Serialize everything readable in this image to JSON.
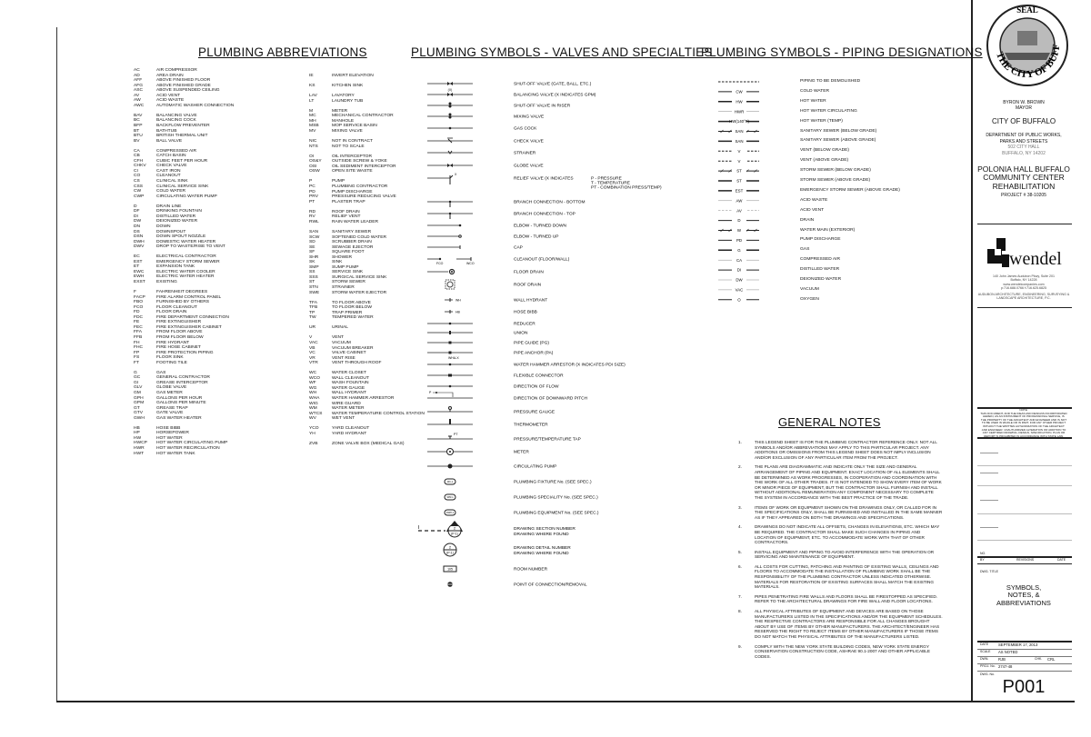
{
  "headings": {
    "abbreviations": "PLUMBING ABBREVIATIONS",
    "valves": "PLUMBING SYMBOLS - VALVES AND SPECIALTIES",
    "piping": "PLUMBING SYMBOLS - PIPING DESIGNATIONS",
    "notes": "GENERAL NOTES"
  },
  "abbreviations_col1": [
    [
      [
        "AC",
        "AIR COMPRESSOR"
      ],
      [
        "AD",
        "AREA DRAIN"
      ],
      [
        "AFF",
        "ABOVE FINISHED FLOOR"
      ],
      [
        "AFG",
        "ABOVE FINISHED GRADE"
      ],
      [
        "ASC",
        "ABOVE SUSPENDED CEILING"
      ],
      [
        "AV",
        "ACID VENT"
      ],
      [
        "AW",
        "ACID WASTE"
      ],
      [
        "AWC",
        "AUTOMATIC WASHER CONNECTION"
      ]
    ],
    [
      [
        "BAV",
        "BALANCING VALVE"
      ],
      [
        "BC",
        "BALANCING COCK"
      ],
      [
        "BFP",
        "BACKFLOW PREVENTER"
      ],
      [
        "BT",
        "BATHTUB"
      ],
      [
        "BTU",
        "BRITISH THERMAL UNIT"
      ],
      [
        "BV",
        "BALL VALVE"
      ]
    ],
    [
      [
        "CA",
        "COMPRESSED AIR"
      ],
      [
        "CB",
        "CATCH BASIN"
      ],
      [
        "CFH",
        "CUBIC FEET PER HOUR"
      ],
      [
        "CHKV",
        "CHECK VALVE"
      ],
      [
        "CI",
        "CAST IRON"
      ],
      [
        "CO",
        "CLEANOUT"
      ],
      [
        "CS",
        "CLINICAL SINK"
      ],
      [
        "CSS",
        "CLINICAL SERVICE SINK"
      ],
      [
        "CW",
        "COLD WATER"
      ],
      [
        "CWP",
        "CIRCULATING WATER PUMP"
      ]
    ],
    [
      [
        "D",
        "DRAIN LINE"
      ],
      [
        "DF",
        "DRINKING FOUNTAIN"
      ],
      [
        "DI",
        "DISTILLED WATER"
      ],
      [
        "DW",
        "DEIONIZED WATER"
      ],
      [
        "DN",
        "DOWN"
      ],
      [
        "DS",
        "DOWNSPOUT"
      ],
      [
        "DSN",
        "DOWN SPOUT NOZZLE"
      ],
      [
        "DWH",
        "DOMESTIC WATER HEATER"
      ],
      [
        "DWV",
        "DROP TO WASTE/RISE TO VENT"
      ]
    ],
    [
      [
        "EC",
        "ELECTRICAL CONTRACTOR"
      ],
      [
        "EST",
        "EMERGENCY STORM SEWER"
      ],
      [
        "ET",
        "EXPANSION TANK"
      ],
      [
        "EWC",
        "ELECTRIC WATER COOLER"
      ],
      [
        "EWH",
        "ELECTRIC WATER HEATER"
      ],
      [
        "EXST",
        "EXISTING"
      ]
    ],
    [
      [
        "F",
        "FAHRENHEIT DEGREES"
      ],
      [
        "FACP",
        "FIRE ALARM CONTROL PANEL"
      ],
      [
        "FBO",
        "FURNISHED BY OTHERS"
      ],
      [
        "FCO",
        "FLOOR CLEANOUT"
      ],
      [
        "FD",
        "FLOOR DRAIN"
      ],
      [
        "FDC",
        "FIRE DEPARTMENT CONNECTION"
      ],
      [
        "FE",
        "FIRE EXTINGUISHER"
      ],
      [
        "FEC",
        "FIRE EXTINGUISHER CABINET"
      ],
      [
        "FFA",
        "FROM FLOOR ABOVE"
      ],
      [
        "FFB",
        "FROM FLOOR BELOW"
      ],
      [
        "FH",
        "FIRE HYDRANT"
      ],
      [
        "FHC",
        "FIRE HOSE CABINET"
      ],
      [
        "FP",
        "FIRE PROTECTION PIPING"
      ],
      [
        "FS",
        "FLOOR SINK"
      ],
      [
        "FT",
        "FOOTING TILE"
      ]
    ],
    [
      [
        "G",
        "GAS"
      ],
      [
        "GC",
        "GENERAL CONTRACTOR"
      ],
      [
        "GI",
        "GREASE INTERCEPTOR"
      ],
      [
        "GLV",
        "GLOBE VALVE"
      ],
      [
        "GM",
        "GAS METER"
      ],
      [
        "GPH",
        "GALLONS PER HOUR"
      ],
      [
        "GPM",
        "GALLONS PER MINUTE"
      ],
      [
        "GT",
        "GREASE TRAP"
      ],
      [
        "GTV",
        "GATE VALVE"
      ],
      [
        "GWH",
        "GAS WATER HEATER"
      ]
    ],
    [
      [
        "HB",
        "HOSE BIBB"
      ],
      [
        "HP",
        "HORSEPOWER"
      ],
      [
        "HW",
        "HOT WATER"
      ],
      [
        "HWCP",
        "HOT WATER CIRCULATING PUMP"
      ],
      [
        "HWR",
        "HOT WATER RECIRCULATION"
      ],
      [
        "HWT",
        "HOT WATER TANK"
      ]
    ]
  ],
  "abbreviations_col2": [
    [
      [
        "IE",
        "INVERT ELEVATION"
      ]
    ],
    [
      [
        "KS",
        "KITCHEN SINK"
      ]
    ],
    [
      [
        "LAV",
        "LAVATORY"
      ],
      [
        "LT",
        "LAUNDRY TUB"
      ]
    ],
    [
      [
        "M",
        "METER"
      ],
      [
        "MC",
        "MECHANICAL CONTRACTOR"
      ],
      [
        "MH",
        "MANHOLE"
      ],
      [
        "MSB",
        "MOP SERVICE BASIN"
      ],
      [
        "MV",
        "MIXING VALVE"
      ]
    ],
    [
      [
        "NIC",
        "NOT IN CONTRACT"
      ],
      [
        "NTS",
        "NOT TO SCALE"
      ]
    ],
    [
      [
        "OI",
        "OIL INTERCEPTOR"
      ],
      [
        "OS&Y",
        "OUTSIDE SCREW & YOKE"
      ],
      [
        "OSI",
        "OIL SEDIMENT INTERCEPTOR"
      ],
      [
        "OSW",
        "OPEN SITE WASTE"
      ]
    ],
    [
      [
        "P",
        "PUMP"
      ],
      [
        "PC",
        "PLUMBING CONTRACTOR"
      ],
      [
        "PD",
        "PUMP DISCHARGE"
      ],
      [
        "PRV",
        "PRESSURE REDUCING VALVE"
      ],
      [
        "PT",
        "PLASTER TRAP"
      ]
    ],
    [
      [
        "RD",
        "ROOF DRAIN"
      ],
      [
        "RV",
        "RELIEF VENT"
      ],
      [
        "RWL",
        "RAIN WATER LEADER"
      ]
    ],
    [
      [
        "SAN",
        "SANITARY SEWER"
      ],
      [
        "SCW",
        "SOFTENED COLD WATER"
      ],
      [
        "SD",
        "SCRUBBER DRAIN"
      ],
      [
        "SE",
        "SEWAGE EJECTOR"
      ],
      [
        "SF",
        "SQUARE FOOT"
      ],
      [
        "SHR",
        "SHOWER"
      ],
      [
        "SK",
        "SINK"
      ],
      [
        "SMP",
        "SUMP PUMP"
      ],
      [
        "SS",
        "SERVICE SINK"
      ],
      [
        "SSS",
        "SURGICAL SERVICE SINK"
      ],
      [
        "ST",
        "STORM SEWER"
      ],
      [
        "STN",
        "STRAINER"
      ],
      [
        "SWE",
        "STORM WATER EJECTOR"
      ]
    ],
    [
      [
        "TFA",
        "TO FLOOR ABOVE"
      ],
      [
        "TFB",
        "TO FLOOR BELOW"
      ],
      [
        "TP",
        "TRAP PRIMER"
      ],
      [
        "TW",
        "TEMPERED WATER"
      ]
    ],
    [
      [
        "UR",
        "URINAL"
      ]
    ],
    [
      [
        "V",
        "VENT"
      ],
      [
        "VAC",
        "VACUUM"
      ],
      [
        "VB",
        "VACUUM BREAKER"
      ],
      [
        "VC",
        "VALVE CABINET"
      ],
      [
        "VR",
        "VENT RISE"
      ],
      [
        "VTR",
        "VENT THROUGH ROOF"
      ]
    ],
    [
      [
        "WC",
        "WATER CLOSET"
      ],
      [
        "WCO",
        "WALL CLEANOUT"
      ],
      [
        "WF",
        "WASH FOUNTAIN"
      ],
      [
        "WG",
        "WATER GAUGE"
      ],
      [
        "WH",
        "WALL HYDRANT"
      ],
      [
        "WHA",
        "WATER HAMMER ARRESTOR"
      ],
      [
        "WIG",
        "WIRE GUARD"
      ],
      [
        "WM",
        "WATER METER"
      ],
      [
        "WTCS",
        "WATER TEMPERATURE CONTROL STATION"
      ],
      [
        "WV",
        "WET VENT"
      ]
    ],
    [
      [
        "YCO",
        "YARD CLEANOUT"
      ],
      [
        "YH",
        "YARD HYDRANT"
      ]
    ],
    [
      [
        "ZVB",
        "ZONE VALVE BOX (MEDICAL GAS)"
      ]
    ]
  ],
  "valve_symbols": [
    {
      "label": "SHUT-OFF VALVE (GATE, BALL, ETC.)",
      "icon": "shutoff-valve-icon",
      "kind": "bowtie"
    },
    {
      "label": "BALANCING VALVE (X INDICATES GPM)",
      "icon": "balancing-valve-icon",
      "kind": "bowtie",
      "tag": "(X)"
    },
    {
      "label": "SHUT-OFF VALVE IN RISER",
      "icon": "riser-valve-icon",
      "kind": "riser"
    },
    {
      "label": "MIXING VALVE",
      "icon": "mixing-valve-icon",
      "kind": "riser"
    },
    {
      "label": "GAS COCK",
      "icon": "gas-cock-icon",
      "kind": "dot"
    },
    {
      "label": "CHECK VALVE",
      "icon": "check-valve-icon",
      "kind": "check"
    },
    {
      "label": "STRAINER",
      "icon": "strainer-icon",
      "kind": "vee"
    },
    {
      "label": "GLOBE VALVE",
      "icon": "globe-valve-icon",
      "kind": "bowtie"
    },
    {
      "label": "RELIEF VALVE (X INDICATES",
      "icon": "relief-valve-icon",
      "kind": "relief",
      "tag": "X",
      "legend": [
        "P - PRESSURE",
        "T - TEMPERATURE",
        "PT - COMBINATION PRESS/TEMP)"
      ]
    },
    {
      "label": "BRANCH CONNECTION - BOTTOM",
      "icon": "branch-bottom-icon",
      "kind": "tee"
    },
    {
      "label": "BRANCH CONNECTION - TOP",
      "icon": "branch-top-icon",
      "kind": "tee"
    },
    {
      "label": "ELBOW - TURNED DOWN",
      "icon": "elbow-down-icon",
      "kind": "enddot"
    },
    {
      "label": "ELBOW - TURNED UP",
      "icon": "elbow-up-icon",
      "kind": "endring"
    },
    {
      "label": "CAP",
      "icon": "cap-icon",
      "kind": "endbar"
    },
    {
      "label": "CLEANOUT (FLOOR/WALL)",
      "icon": "cleanout-icon",
      "kind": "cleanout",
      "tags": [
        "FCO",
        "WCO"
      ]
    },
    {
      "label": "FLOOR DRAIN",
      "icon": "floor-drain-icon",
      "kind": "drain"
    },
    {
      "label": "ROOF DRAIN",
      "icon": "roof-drain-icon",
      "kind": "roofdrain"
    },
    {
      "label": "WALL HYDRANT",
      "icon": "wall-hydrant-icon",
      "kind": "short",
      "tag": "WH"
    },
    {
      "label": "HOSE BIBB",
      "icon": "hose-bibb-icon",
      "kind": "short",
      "tag": "HB"
    },
    {
      "label": "REDUCER",
      "icon": "reducer-icon",
      "kind": "dot"
    },
    {
      "label": "UNION",
      "icon": "union-icon",
      "kind": "bar"
    },
    {
      "label": "PIPE GUIDE (PG)",
      "icon": "pipe-guide-icon",
      "kind": "sq"
    },
    {
      "label": "PIPE ANCHOR (PA)",
      "icon": "pipe-anchor-icon",
      "kind": "sq"
    },
    {
      "label": "WATER HAMMER ARRESTOR (X INDICATES PDI SIZE)",
      "icon": "water-hammer-arrestor-icon",
      "kind": "dot",
      "tag": "WHA-X"
    },
    {
      "label": "FLEXIBLE CONNECTOR",
      "icon": "flexible-connector-icon",
      "kind": "rect"
    },
    {
      "label": "DIRECTION OF FLOW",
      "icon": "flow-direction-icon",
      "kind": "dot"
    },
    {
      "label": "DIRECTION OF DOWNWARD PITCH",
      "icon": "pitch-direction-icon",
      "kind": "pitch",
      "tag": "P"
    },
    {
      "label": "PRESSURE GAUGE",
      "icon": "pressure-gauge-icon",
      "kind": "gauge"
    },
    {
      "label": "THERMOMETER",
      "icon": "thermometer-icon",
      "kind": "thermo"
    },
    {
      "label": "PRESSURE/TEMPERATURE TAP",
      "icon": "pt-tap-icon",
      "kind": "tap",
      "tag": "PT"
    },
    {
      "label": "METER",
      "icon": "meter-icon",
      "kind": "meter"
    },
    {
      "label": "CIRCULATING PUMP",
      "icon": "circulating-pump-icon",
      "kind": "pump"
    },
    {
      "label": "PLUMBING FIXTURE No. (SEE SPEC.)",
      "icon": "fixture-tag-icon",
      "kind": "oval",
      "tag": "WC-1"
    },
    {
      "label": "PLUMBING SPECIALITY No. (SEE SPEC.)",
      "icon": "speciality-tag-icon",
      "kind": "oval",
      "tag": "SPR-1"
    },
    {
      "label": "PLUMBING EQUIPMENT No. (SEE SPEC.)",
      "icon": "equipment-tag-icon",
      "kind": "oval",
      "tag": "DWH-1"
    },
    {
      "label": "DRAWING SECTION NUMBER",
      "label2": "DRAWING WHERE FOUND",
      "icon": "section-marker-icon",
      "kind": "section",
      "tag": "2",
      "tag2": "P-1"
    },
    {
      "label": "DRAWING DETAIL NUMBER",
      "label2": "DRAWING WHERE FOUND",
      "icon": "detail-marker-icon",
      "kind": "detail",
      "tag": "2",
      "tag2": "P-1"
    },
    {
      "label": "ROOM NUMBER",
      "icon": "room-number-icon",
      "kind": "room",
      "tag": "105"
    },
    {
      "label": "POINT OF CONNECTION/REMOVAL",
      "icon": "point-of-connection-icon",
      "kind": "poc"
    }
  ],
  "piping_designations": [
    {
      "tag": "",
      "label": "PIPING TO BE DEMOLISHED",
      "style": "dashed",
      "weight": 1
    },
    {
      "tag": "CW",
      "label": "COLD WATER",
      "style": "solid",
      "weight": 1
    },
    {
      "tag": "HW",
      "label": "HOT WATER",
      "style": "solid",
      "weight": 1.5
    },
    {
      "tag": "HWR",
      "label": "HOT WATER CIRCULATING",
      "style": "solid",
      "weight": 0.5
    },
    {
      "tag": "HW(140°F)",
      "label": "HOT WATER (TEMP)",
      "style": "solid",
      "weight": 1.5
    },
    {
      "tag": "SAN",
      "label": "SANITARY SEWER (BELOW GRADE)",
      "style": "hatched",
      "weight": 1
    },
    {
      "tag": "SAN",
      "label": "SANITARY SEWER (ABOVE GRADE)",
      "style": "solid",
      "weight": 1.5
    },
    {
      "tag": "V",
      "label": "VENT (BELOW GRADE)",
      "style": "dashed",
      "weight": 1
    },
    {
      "tag": "V",
      "label": "VENT (ABOVE GRADE)",
      "style": "dashed",
      "weight": 1
    },
    {
      "tag": "ST",
      "label": "STORM SEWER (BELOW GRADE)",
      "style": "hatched",
      "weight": 1
    },
    {
      "tag": "ST",
      "label": "STORM SEWER (ABOVE GRADE)",
      "style": "solid",
      "weight": 1.5
    },
    {
      "tag": "EST",
      "label": "EMERGENCY STORM SEWER (ABOVE GRADE)",
      "style": "solid",
      "weight": 1.5
    },
    {
      "tag": "AW",
      "label": "ACID WASTE",
      "style": "solid",
      "weight": 0.5
    },
    {
      "tag": "AV",
      "label": "ACID VENT",
      "style": "dashed",
      "weight": 0.5
    },
    {
      "tag": "D",
      "label": "DRAIN",
      "style": "solid",
      "weight": 1
    },
    {
      "tag": "W",
      "label": "WATER MAIN (EXTERIOR)",
      "style": "hatched",
      "weight": 1
    },
    {
      "tag": "PD",
      "label": "PUMP DISCHARGE",
      "style": "solid",
      "weight": 1
    },
    {
      "tag": "G",
      "label": "GAS",
      "style": "solid",
      "weight": 1.5
    },
    {
      "tag": "CA",
      "label": "COMPRESSED AIR",
      "style": "solid",
      "weight": 0.5
    },
    {
      "tag": "DI",
      "label": "DISTILLED WATER",
      "style": "solid",
      "weight": 1
    },
    {
      "tag": "DW",
      "label": "DEIONIZED WATER",
      "style": "solid",
      "weight": 0.5
    },
    {
      "tag": "VAC",
      "label": "VACUUM",
      "style": "solid",
      "weight": 0.5
    },
    {
      "tag": "O",
      "label": "OXYGEN",
      "style": "solid",
      "weight": 1
    }
  ],
  "general_notes": [
    "THIS LEGEND SHEET IS FOR THE PLUMBING CONTRACTOR REFERENCE ONLY.  NOT ALL SYMBOLS AND/OR ABBREVIATIONS MAY APPLY TO THIS PARTICULAR PROJECT.  ANY ADDITIONS OR OMISSIONS FROM THIS LEGEND SHEET DOES NOT IMPLY INCLUSION AND/OR EXCLUSION OF ANY PARTICULAR ITEM FROM THE PROJECT.",
    "THE PLANS ARE DIAGRAMMATIC AND INDICATE ONLY THE SIZE AND GENERAL ARRANGEMENT OF PIPING AND EQUIPMENT.  EXACT LOCATION OF ALL ELEMENTS SHALL BE DETERMINED AS WORK PROGRESSES, IN COOPERATION AND COORDINATION WITH THE WORK OF ALL OTHER TRADES.  IT IS NOT INTENDED TO SHOW EVERY ITEM OF WORK OR MINOR PIECE OF EQUIPMENT, BUT THE CONTRACTOR SHALL FURNISH AND INSTALL WITHOUT ADDITIONAL REMUNERATION ANY COMPONENT NECESSARY TO COMPLETE THE SYSTEM IN ACCORDANCE WITH THE BEST PRACTICE OF THE TRADE.",
    "ITEMS OF WORK OR EQUIPMENT SHOWN ON THE DRAWINGS ONLY, OR CALLED FOR IN THE SPECIFICATIONS ONLY, SHALL BE FURNISHED AND INSTALLED IN THE SAME MANNER AS IF THEY APPEARED ON BOTH THE DRAWINGS AND SPECIFICATIONS.",
    "DRAWINGS DO NOT INDICATE ALL OFFSETS, CHANGES IN ELEVATIONS, ETC. WHICH MAY BE REQUIRED.  THE CONTRACTOR SHALL MAKE SUCH CHANGES IN PIPING AND LOCATION OF EQUIPMENT, ETC. TO ACCOMMODATE WORK WITH THAT OF OTHER CONTRACTORS.",
    "INSTALL EQUIPMENT AND PIPING TO AVOID INTERFERENCE WITH THE OPERATION OR SERVICING AND MAINTENANCE OF EQUIPMENT.",
    "ALL COSTS FOR CUTTING, PATCHING AND PAINTING OF EXISTING WALLS, CEILINGS AND FLOORS TO ACCOMMODATE THE INSTALLATION OF PLUMBING WORK SHALL BE THE RESPONSIBILITY OF THE PLUMBING CONTRACTOR UNLESS INDICATED OTHERWISE.  MATERIALS FOR RESTORATION OF EXISTING SURFACES SHALL MATCH THE EXISTING MATERIALS.",
    "PIPES PENETRATING FIRE WALLS AND FLOORS SHALL BE FIRESTOPPED AS SPECIFIED.  REFER TO THE ARCHITECTURAL DRAWINGS FOR FIRE WALL AND FLOOR LOCATIONS.",
    "ALL PHYSICAL ATTRIBUTES OF EQUIPMENT AND DEVICES ARE BASED ON THOSE MANUFACTURERS LISTED IN THE SPECIFICATIONS AND/OR THE EQUIPMENT SCHEDULES. THE RESPECTIVE CONTRACTORS ARE RESPONSIBLE FOR ALL CHANGES BROUGHT ABOUT BY USE OF ITEMS BY OTHER MANUFACTURERS.  THE ARCHITECT/ENGINEER HAS RESERVED THE RIGHT TO REJECT ITEMS BY OTHER MANUFACTURERS IF THOSE ITEMS DO NOT MATCH THE PHYSICAL ATTRIBUTES OF THE MANUFACTURERS LISTED.",
    "COMPLY WITH THE NEW YORK STATE BUILDING CODES, NEW YORK STATE ENERGY CONSERVATION CONSTRUCTION CODE, ASHRAE 90.1-2007 AND OTHER APPLICABLE CODES."
  ],
  "title_block": {
    "seal_text": [
      "SEAL",
      "THE CITY OF BUFFALO"
    ],
    "mayor_name": "BYRON W. BROWN",
    "mayor_title": "MAYOR",
    "city": "CITY OF BUFFALO",
    "department": [
      "DEPARTMENT OF PUBLIC WORKS,",
      "PARKS AND STREETS"
    ],
    "dept_address": [
      "502 CITY HALL",
      "BUFFALO, NY 14202"
    ],
    "project_name": [
      "POLONIA HALL BUFFALO",
      "COMMUNITY CENTER",
      "REHABILITATION"
    ],
    "project_number": "PROJECT # 38-10205",
    "firm_logo": "wendel",
    "firm_address": [
      "140 John James Audubon Pkwy, Suite 201",
      "Buffalo, NY 14228",
      "www.wendelcompanies.com",
      "p:716.688.0766     f:716.625.6825"
    ],
    "firm_disciplines": [
      "AUDUBON ARCHITECTURE, ENGINEERING, SURVEYING &",
      "LANDSCAPE ARCHITECTURE, P.C."
    ],
    "note_title": "NOTE:",
    "note_text": "THIS DOCUMENT, AND THE IDEAS AND DESIGNS INCORPORATED HEREIN, AS AN INSTRUMENT OF PROFESSIONAL SERVICE, IS THE PROPERTY OF THE ARCHITECT AND ENGINEER AND IS NOT TO BE USED IN WHOLE OR IN PART, FOR ANY OTHER PROJECT WITHOUT THE WRITTEN AUTHORIZATION OF THE ARCHITECT AND ENGINEER. UNAUTHORIZED ALTERATION OR ADDITION TO ANY CERTIFIED DRAWING, DESIGN, SPECIFICATION, PLAN OR REPORT IS PROHIBITED IN ACCORDANCE WITH STATE LAW.",
    "revisions_headers": {
      "no": "NO.",
      "by": "BY",
      "revisions": "REVISIONS",
      "date": "DATE"
    },
    "dwg_title_label": "DWG. TITLE",
    "dwg_title": [
      "SYMBOLS,",
      "NOTES, &",
      "ABBREVIATIONS"
    ],
    "date_label": "DATE",
    "date": "SEPTEMBER 17, 2013",
    "scale_label": "SCALE",
    "scale": "AS NOTED",
    "dwn_label": "DWN.",
    "dwn": "RJB",
    "chk_label": "CHK.",
    "chk": "CRL",
    "proj_label": "PROJ. No.",
    "proj": "2747-48",
    "dwg_no_label": "DWG. No.",
    "dwg_no": "P001"
  }
}
